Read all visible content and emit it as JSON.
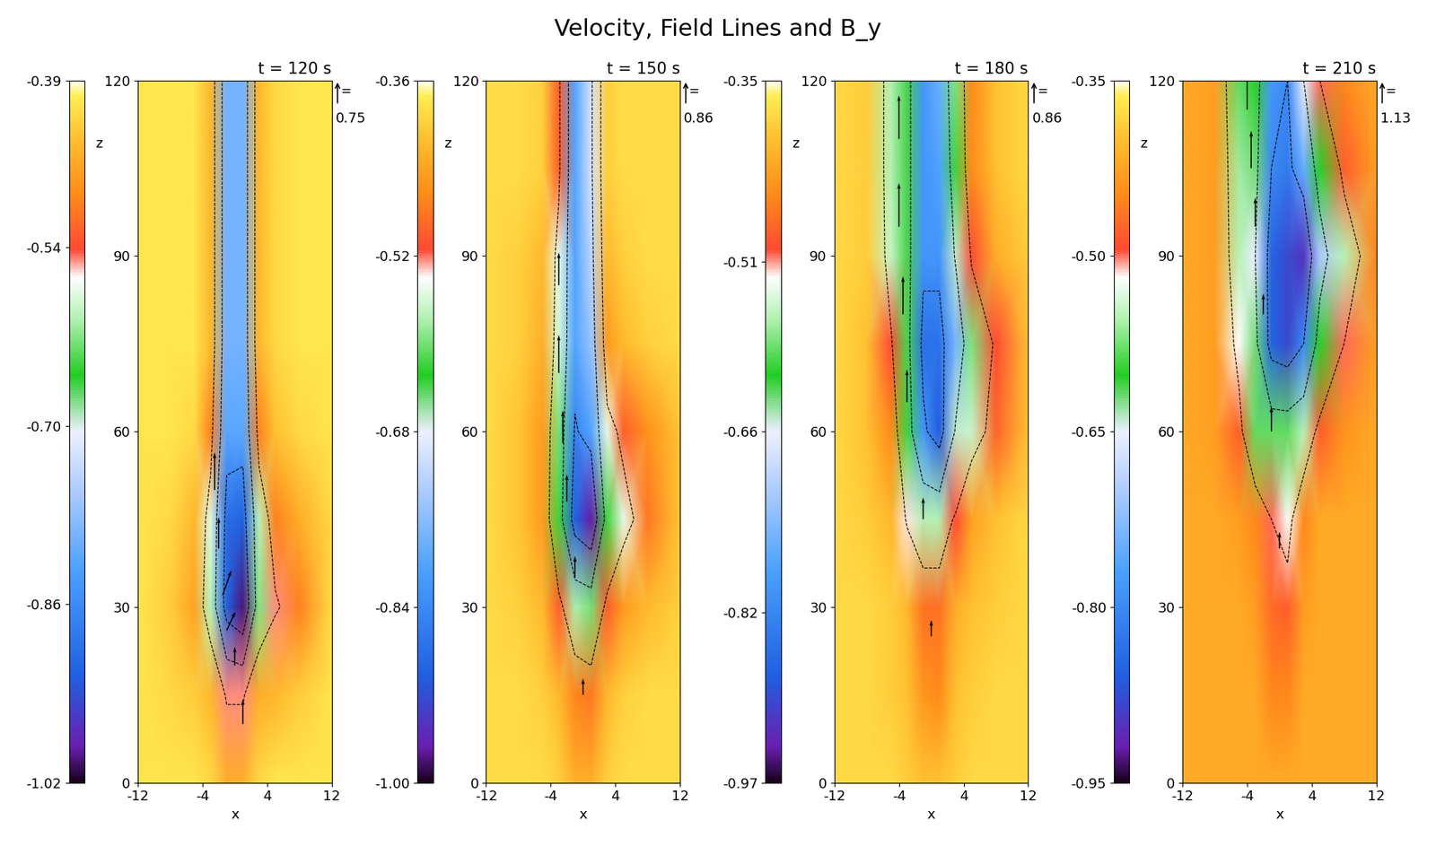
{
  "title": "Velocity, Field Lines and B_y",
  "vector_scale_sign": "=",
  "chart_data": [
    {
      "type": "heatmap",
      "title": "t = 120 s",
      "x_label": "x",
      "y_label": "z",
      "xlim": [
        -12,
        12
      ],
      "ylim": [
        0,
        120
      ],
      "xticks": [
        -12,
        -4,
        4,
        12
      ],
      "yticks": [
        0,
        30,
        60,
        90,
        120
      ],
      "colorbar": {
        "range": [
          -1.02,
          -0.39
        ],
        "ticks": [
          -1.02,
          -0.86,
          {
            "value": -0.7,
            "label": "-0.70"
          },
          -0.54,
          -0.39
        ]
      },
      "vector_scale": 0.75,
      "vectors": {
        "x": [
          -2.5,
          -2,
          -1.5,
          -1,
          0,
          1
        ],
        "z": [
          50,
          40,
          32,
          26,
          20,
          10
        ],
        "u": [
          0,
          0,
          0.1,
          0.1,
          0,
          0
        ],
        "w": [
          0.6,
          0.5,
          0.4,
          0.3,
          0.3,
          0.4
        ]
      },
      "cells": {
        "x": [
          -12,
          -8,
          -5,
          -3,
          -1,
          1,
          3,
          5,
          8,
          12
        ],
        "z": [
          0,
          15,
          30,
          45,
          60,
          75,
          90,
          105,
          120
        ],
        "values": [
          [
            -0.41,
            -0.41,
            -0.41,
            -0.42,
            -0.46,
            -0.46,
            -0.42,
            -0.41,
            -0.41,
            -0.41
          ],
          [
            -0.41,
            -0.42,
            -0.43,
            -0.45,
            -0.55,
            -0.55,
            -0.46,
            -0.45,
            -0.43,
            -0.41
          ],
          [
            -0.41,
            -0.43,
            -0.47,
            -0.6,
            -0.92,
            -1.0,
            -0.62,
            -0.55,
            -0.5,
            -0.42
          ],
          [
            -0.41,
            -0.42,
            -0.45,
            -0.58,
            -0.9,
            -0.92,
            -0.6,
            -0.5,
            -0.46,
            -0.42
          ],
          [
            -0.41,
            -0.41,
            -0.42,
            -0.5,
            -0.82,
            -0.82,
            -0.5,
            -0.44,
            -0.42,
            -0.41
          ],
          [
            -0.41,
            -0.41,
            -0.41,
            -0.45,
            -0.8,
            -0.8,
            -0.45,
            -0.42,
            -0.41,
            -0.41
          ],
          [
            -0.41,
            -0.41,
            -0.41,
            -0.45,
            -0.8,
            -0.8,
            -0.45,
            -0.42,
            -0.41,
            -0.41
          ],
          [
            -0.41,
            -0.41,
            -0.41,
            -0.45,
            -0.8,
            -0.8,
            -0.45,
            -0.42,
            -0.41,
            -0.41
          ],
          [
            -0.41,
            -0.41,
            -0.41,
            -0.45,
            -0.8,
            -0.8,
            -0.45,
            -0.42,
            -0.41,
            -0.41
          ]
        ]
      }
    },
    {
      "type": "heatmap",
      "title": "t = 150 s",
      "x_label": "x",
      "y_label": "z",
      "xlim": [
        -12,
        12
      ],
      "ylim": [
        0,
        120
      ],
      "xticks": [
        -12,
        -4,
        4,
        12
      ],
      "yticks": [
        0,
        30,
        60,
        90,
        120
      ],
      "colorbar": {
        "range": [
          -1.0,
          -0.36
        ],
        "ticks": [
          {
            "value": -1.0,
            "label": "-1.00"
          },
          -0.84,
          -0.68,
          -0.52,
          -0.36
        ]
      },
      "vector_scale": 0.86,
      "vectors": {
        "x": [
          -3,
          -3,
          -2.5,
          -2,
          -1,
          0
        ],
        "z": [
          85,
          70,
          58,
          48,
          35,
          15
        ],
        "u": [
          0,
          0,
          0,
          0,
          0,
          0
        ],
        "w": [
          0.6,
          0.7,
          0.6,
          0.5,
          0.4,
          0.3
        ]
      },
      "cells": {
        "x": [
          -12,
          -8,
          -5,
          -3,
          -1,
          1,
          3,
          5,
          8,
          12
        ],
        "z": [
          0,
          15,
          30,
          45,
          60,
          75,
          90,
          105,
          120
        ],
        "values": [
          [
            -0.39,
            -0.39,
            -0.39,
            -0.4,
            -0.43,
            -0.43,
            -0.4,
            -0.39,
            -0.39,
            -0.39
          ],
          [
            -0.39,
            -0.39,
            -0.4,
            -0.42,
            -0.47,
            -0.48,
            -0.42,
            -0.4,
            -0.39,
            -0.39
          ],
          [
            -0.39,
            -0.4,
            -0.42,
            -0.5,
            -0.58,
            -0.6,
            -0.5,
            -0.45,
            -0.42,
            -0.4
          ],
          [
            -0.39,
            -0.41,
            -0.45,
            -0.62,
            -0.9,
            -0.97,
            -0.62,
            -0.55,
            -0.48,
            -0.41
          ],
          [
            -0.39,
            -0.41,
            -0.45,
            -0.6,
            -0.85,
            -0.8,
            -0.55,
            -0.5,
            -0.46,
            -0.41
          ],
          [
            -0.39,
            -0.4,
            -0.43,
            -0.56,
            -0.8,
            -0.75,
            -0.45,
            -0.42,
            -0.4,
            -0.39
          ],
          [
            -0.39,
            -0.4,
            -0.42,
            -0.55,
            -0.8,
            -0.72,
            -0.42,
            -0.4,
            -0.39,
            -0.39
          ],
          [
            -0.39,
            -0.39,
            -0.4,
            -0.5,
            -0.8,
            -0.7,
            -0.4,
            -0.39,
            -0.39,
            -0.39
          ],
          [
            -0.39,
            -0.39,
            -0.4,
            -0.5,
            -0.8,
            -0.7,
            -0.4,
            -0.39,
            -0.39,
            -0.39
          ]
        ]
      }
    },
    {
      "type": "heatmap",
      "title": "t = 180 s",
      "x_label": "x",
      "y_label": "z",
      "xlim": [
        -12,
        12
      ],
      "ylim": [
        0,
        120
      ],
      "xticks": [
        -12,
        -4,
        4,
        12
      ],
      "yticks": [
        0,
        30,
        60,
        90,
        120
      ],
      "colorbar": {
        "range": [
          -0.97,
          -0.35
        ],
        "ticks": [
          -0.97,
          -0.82,
          -0.66,
          -0.51,
          -0.35
        ]
      },
      "vector_scale": 0.86,
      "vectors": {
        "x": [
          -4,
          -4,
          -3.5,
          -3,
          -1,
          0
        ],
        "z": [
          110,
          95,
          80,
          65,
          45,
          25
        ],
        "u": [
          0,
          0,
          0,
          0,
          0,
          0
        ],
        "w": [
          0.8,
          0.8,
          0.7,
          0.6,
          0.4,
          0.3
        ]
      },
      "cells": {
        "x": [
          -12,
          -8,
          -5,
          -3,
          -1,
          1,
          3,
          5,
          8,
          12
        ],
        "z": [
          0,
          15,
          30,
          45,
          60,
          75,
          90,
          105,
          120
        ],
        "values": [
          [
            -0.38,
            -0.38,
            -0.38,
            -0.39,
            -0.4,
            -0.4,
            -0.39,
            -0.38,
            -0.38,
            -0.38
          ],
          [
            -0.38,
            -0.38,
            -0.39,
            -0.4,
            -0.44,
            -0.45,
            -0.4,
            -0.39,
            -0.38,
            -0.38
          ],
          [
            -0.38,
            -0.38,
            -0.39,
            -0.41,
            -0.47,
            -0.47,
            -0.42,
            -0.4,
            -0.39,
            -0.38
          ],
          [
            -0.38,
            -0.39,
            -0.41,
            -0.52,
            -0.56,
            -0.56,
            -0.5,
            -0.43,
            -0.4,
            -0.38
          ],
          [
            -0.38,
            -0.4,
            -0.45,
            -0.6,
            -0.8,
            -0.88,
            -0.65,
            -0.55,
            -0.48,
            -0.4
          ],
          [
            -0.38,
            -0.4,
            -0.5,
            -0.62,
            -0.85,
            -0.85,
            -0.75,
            -0.58,
            -0.5,
            -0.4
          ],
          [
            -0.38,
            -0.39,
            -0.55,
            -0.62,
            -0.8,
            -0.8,
            -0.65,
            -0.5,
            -0.42,
            -0.39
          ],
          [
            -0.38,
            -0.39,
            -0.56,
            -0.62,
            -0.8,
            -0.78,
            -0.6,
            -0.45,
            -0.4,
            -0.38
          ],
          [
            -0.38,
            -0.39,
            -0.56,
            -0.62,
            -0.8,
            -0.76,
            -0.58,
            -0.45,
            -0.4,
            -0.38
          ]
        ]
      }
    },
    {
      "type": "heatmap",
      "title": "t = 210 s",
      "x_label": "x",
      "y_label": "z",
      "xlim": [
        -12,
        12
      ],
      "ylim": [
        0,
        120
      ],
      "xticks": [
        -12,
        -4,
        4,
        12
      ],
      "yticks": [
        0,
        30,
        60,
        90,
        120
      ],
      "colorbar": {
        "range": [
          -0.95,
          -0.35
        ],
        "ticks": [
          -0.95,
          {
            "value": -0.8,
            "label": "-0.80"
          },
          -0.65,
          {
            "value": -0.5,
            "label": "-0.50"
          },
          -0.35
        ]
      },
      "vector_scale": 1.13,
      "vectors": {
        "x": [
          -4,
          -3.5,
          -3,
          -2,
          -1,
          0
        ],
        "z": [
          115,
          105,
          95,
          80,
          60,
          40
        ],
        "u": [
          0,
          0,
          0,
          0,
          0,
          0
        ],
        "w": [
          1.0,
          0.9,
          0.7,
          0.5,
          0.6,
          0.4
        ]
      },
      "cells": {
        "x": [
          -12,
          -8,
          -5,
          -3,
          -1,
          1,
          3,
          5,
          8,
          12
        ],
        "z": [
          0,
          15,
          30,
          45,
          60,
          75,
          90,
          105,
          120
        ],
        "values": [
          [
            -0.42,
            -0.42,
            -0.42,
            -0.42,
            -0.42,
            -0.42,
            -0.42,
            -0.42,
            -0.42,
            -0.42
          ],
          [
            -0.42,
            -0.42,
            -0.42,
            -0.42,
            -0.45,
            -0.45,
            -0.42,
            -0.42,
            -0.42,
            -0.42
          ],
          [
            -0.42,
            -0.42,
            -0.42,
            -0.43,
            -0.47,
            -0.48,
            -0.43,
            -0.42,
            -0.42,
            -0.42
          ],
          [
            -0.42,
            -0.42,
            -0.43,
            -0.45,
            -0.5,
            -0.52,
            -0.45,
            -0.42,
            -0.42,
            -0.42
          ],
          [
            -0.42,
            -0.43,
            -0.48,
            -0.58,
            -0.58,
            -0.58,
            -0.55,
            -0.48,
            -0.44,
            -0.42
          ],
          [
            -0.42,
            -0.43,
            -0.52,
            -0.62,
            -0.85,
            -0.88,
            -0.8,
            -0.6,
            -0.5,
            -0.43
          ],
          [
            -0.42,
            -0.43,
            -0.55,
            -0.65,
            -0.85,
            -0.88,
            -0.9,
            -0.7,
            -0.55,
            -0.45
          ],
          [
            -0.42,
            -0.43,
            -0.56,
            -0.62,
            -0.8,
            -0.82,
            -0.75,
            -0.6,
            -0.48,
            -0.43
          ],
          [
            -0.42,
            -0.43,
            -0.58,
            -0.6,
            -0.78,
            -0.8,
            -0.65,
            -0.5,
            -0.45,
            -0.42
          ]
        ]
      }
    }
  ]
}
